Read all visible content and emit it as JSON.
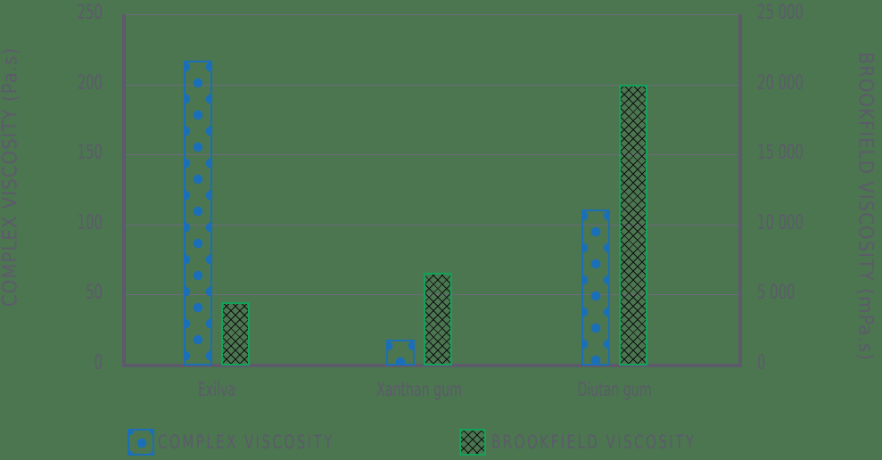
{
  "chart_data": {
    "type": "bar",
    "title": "",
    "categories": [
      "Exilva",
      "Xanthan gum",
      "Diutan gum"
    ],
    "series": [
      {
        "name": "COMPLEX VISCOSITY",
        "axis": "left",
        "values": [
          217,
          18,
          111
        ]
      },
      {
        "name": "BROOKFIELD VISCOSITY",
        "axis": "right",
        "values": [
          4450,
          6550,
          20000
        ]
      }
    ],
    "xlabel": "",
    "ylabel": "COMPLEX VISCOSITY (Pa.s)",
    "ylabel_right": "BROOKFIELD VISCOSITY (mPa.s)",
    "ylim": [
      0,
      250
    ],
    "ylim_right": [
      0,
      25000
    ],
    "yticks": [
      "0",
      "50",
      "100",
      "150",
      "200",
      "250"
    ],
    "yticks_right": [
      "0",
      "5 000",
      "10 000",
      "15 000",
      "20 000",
      "25 000"
    ],
    "grid": true,
    "legend_position": "bottom"
  },
  "colors": {
    "background": "#4b7650",
    "complex": "#1b6fb8",
    "brookfield": "#13a25a",
    "text": "#5d5a6b"
  },
  "legend": {
    "complex": "COMPLEX VISCOSITY",
    "brookfield": "BROOKFIELD VISCOSITY"
  }
}
